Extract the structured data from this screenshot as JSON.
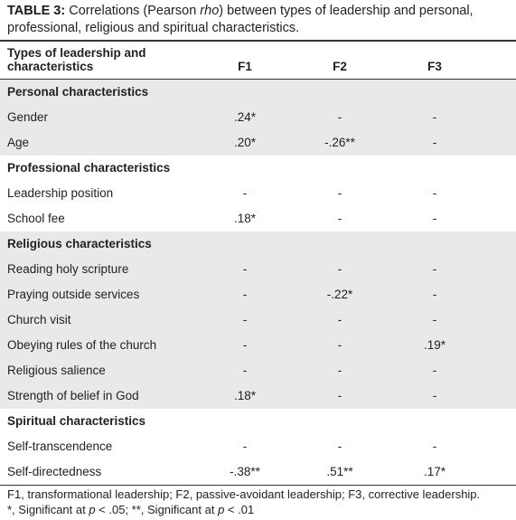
{
  "caption": {
    "label": "TABLE 3:",
    "text_before": "Correlations (Pearson ",
    "italic": "rho",
    "text_after": ") between types of leadership and personal, professional, religious and spiritual characteristics."
  },
  "table": {
    "header": [
      "Types of leadership and characteristics",
      "F1",
      "F2",
      "F3"
    ],
    "sections": [
      {
        "title": "Personal characteristics",
        "rows": [
          [
            "Gender",
            ".24*",
            "-",
            "-"
          ],
          [
            "Age",
            ".20*",
            "-.26**",
            "-"
          ]
        ]
      },
      {
        "title": "Professional characteristics",
        "rows": [
          [
            "Leadership position",
            "-",
            "-",
            "-"
          ],
          [
            "School fee",
            ".18*",
            "-",
            "-"
          ]
        ]
      },
      {
        "title": "Religious characteristics",
        "rows": [
          [
            "Reading holy scripture",
            "-",
            "-",
            "-"
          ],
          [
            "Praying outside services",
            "-",
            "-.22*",
            "-"
          ],
          [
            "Church visit",
            "-",
            "-",
            "-"
          ],
          [
            "Obeying rules of the church",
            "-",
            "-",
            ".19*"
          ],
          [
            "Religious salience",
            "-",
            "-",
            "-"
          ],
          [
            "Strength of belief in God",
            ".18*",
            "-",
            "-"
          ]
        ]
      },
      {
        "title": "Spiritual characteristics",
        "rows": [
          [
            "Self-transcendence",
            "-",
            "-",
            "-"
          ],
          [
            "Self-directedness",
            "-.38**",
            ".51**",
            ".17*"
          ]
        ]
      }
    ]
  },
  "footnotes": {
    "line1": "F1, transformational leadership; F2, passive-avoidant leadership; F3, corrective leadership.",
    "line2_a": "*, Significant at ",
    "line2_p1": "p",
    "line2_b": " < .05; **, Significant at ",
    "line2_p2": "p",
    "line2_c": " < .01"
  }
}
